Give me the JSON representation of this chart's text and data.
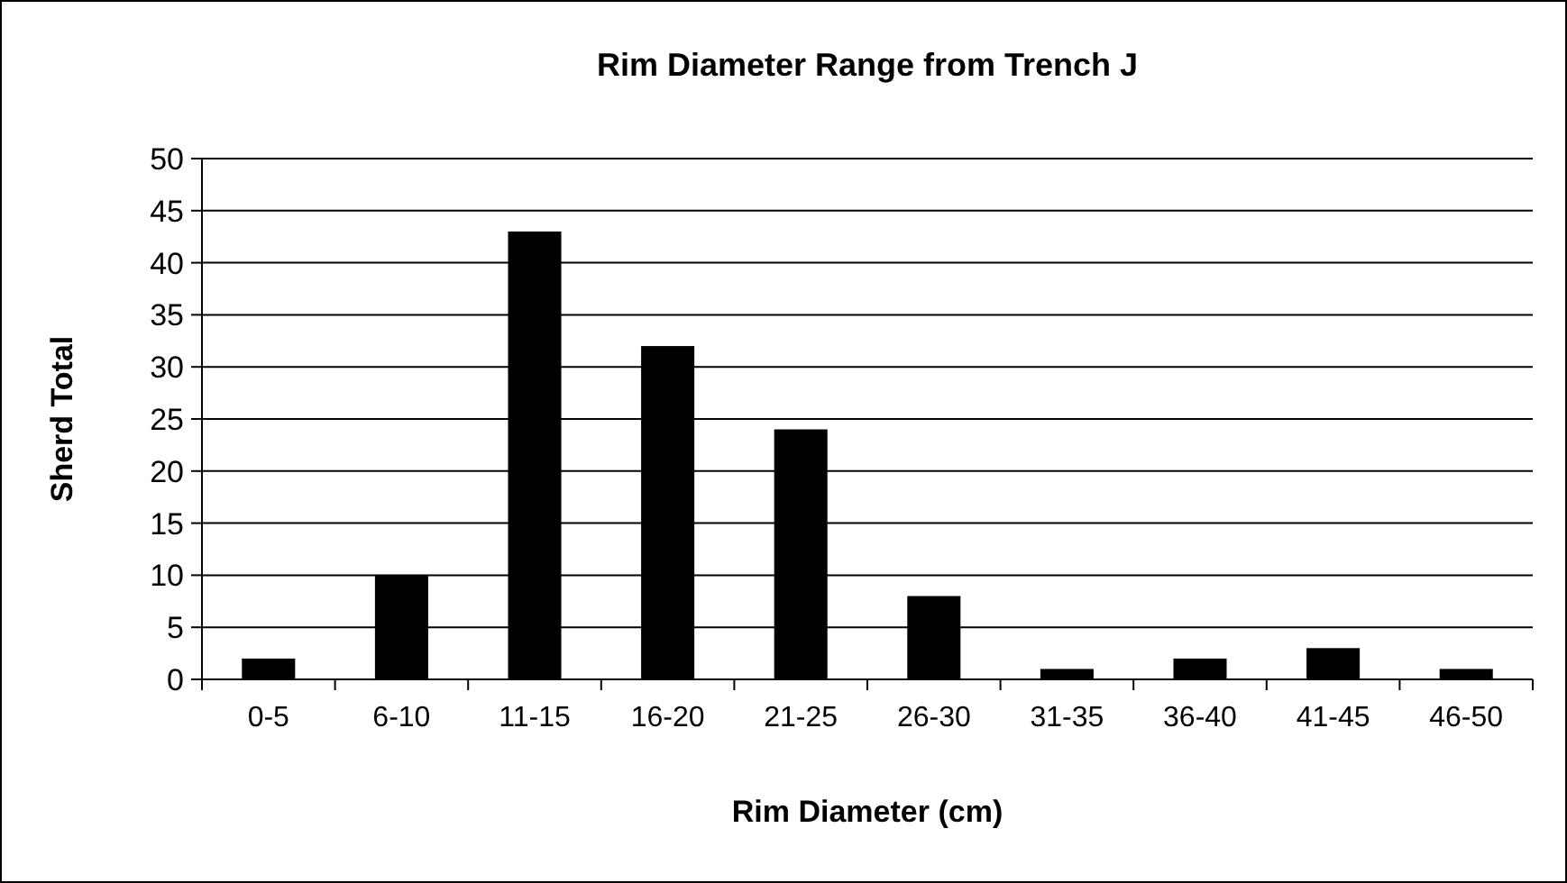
{
  "chart_data": {
    "type": "bar",
    "title": "Rim Diameter Range from Trench J",
    "xlabel": "Rim Diameter (cm)",
    "ylabel": "Sherd Total",
    "categories": [
      "0-5",
      "6-10",
      "11-15",
      "16-20",
      "21-25",
      "26-30",
      "31-35",
      "36-40",
      "41-45",
      "46-50"
    ],
    "values": [
      2,
      10,
      43,
      32,
      24,
      8,
      1,
      2,
      3,
      1
    ],
    "color": "#000000",
    "ylim": [
      0,
      50
    ],
    "yticks": [
      0,
      5,
      10,
      15,
      20,
      25,
      30,
      35,
      40,
      45,
      50
    ],
    "grid": "y"
  }
}
